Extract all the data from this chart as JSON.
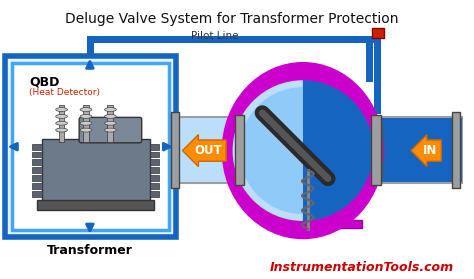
{
  "title": "Deluge Valve System for Transformer Protection",
  "title_fontsize": 10,
  "title_color": "#111111",
  "bg_color": "#ffffff",
  "pilot_line_label": "Pilot Line",
  "transformer_label": "Transformer",
  "qbd_label": "QBD",
  "heat_detector_label": "(Heat Detector)",
  "out_label": "OUT",
  "in_label": "IN",
  "watermark": "InstrumentationTools.com",
  "watermark_color": "#cc0000",
  "watermark_fontsize": 9,
  "box_blue": "#1565C0",
  "box_light_blue": "#42A5F5",
  "inner_bg": "#ffffff",
  "pipe_blue": "#1565C0",
  "valve_dark_blue": "#1565C0",
  "valve_mid_blue": "#1976D2",
  "valve_light_blue": "#BBDEFB",
  "valve_trim": "#CC00CC",
  "arrow_color": "#FF8C00",
  "gray_pipe": "#9E9E9E",
  "dark_gray": "#555555",
  "spring_color": "#555555",
  "red_accent": "#CC2200",
  "dark_red": "#8B0000"
}
